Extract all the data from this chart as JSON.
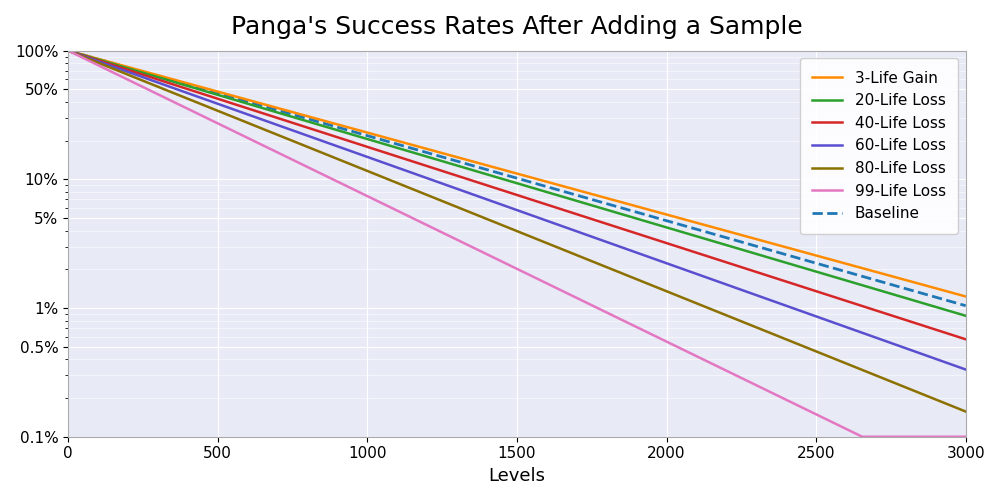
{
  "title": "Panga's Success Rates After Adding a Sample",
  "xlabel": "Levels",
  "ylabel": "",
  "background_color": "#e8eaf6",
  "figure_background": "#ffffff",
  "x_min": 0,
  "x_max": 3000,
  "y_min": 0.001,
  "y_max": 1.0,
  "yticks": [
    1.0,
    0.5,
    0.1,
    0.05,
    0.01,
    0.005,
    0.001
  ],
  "ytick_labels": [
    "100%",
    "50%",
    "10%",
    "5%",
    "1%",
    "0.5%",
    "0.1%"
  ],
  "xticks": [
    0,
    500,
    1000,
    1500,
    2000,
    2500,
    3000
  ],
  "series": [
    {
      "label": "3-Life Gain",
      "color": "#ff8c00",
      "linestyle": "-",
      "linewidth": 1.8,
      "p_per_level": 0.998535
    },
    {
      "label": "20-Life Loss",
      "color": "#2ca02c",
      "linestyle": "-",
      "linewidth": 1.8,
      "p_per_level": 0.99842
    },
    {
      "label": "40-Life Loss",
      "color": "#d62728",
      "linestyle": "-",
      "linewidth": 1.8,
      "p_per_level": 0.99828
    },
    {
      "label": "60-Life Loss",
      "color": "#5a4fcf",
      "linestyle": "-",
      "linewidth": 1.8,
      "p_per_level": 0.9981
    },
    {
      "label": "80-Life Loss",
      "color": "#8c7000",
      "linestyle": "-",
      "linewidth": 1.8,
      "p_per_level": 0.99785
    },
    {
      "label": "99-Life Loss",
      "color": "#e377c2",
      "linestyle": "-",
      "linewidth": 1.8,
      "p_per_level": 0.9974
    }
  ],
  "baseline_label": "Baseline",
  "baseline_color": "#1f77b4",
  "baseline_linestyle": "--",
  "baseline_linewidth": 2.0,
  "baseline_p": 0.99848,
  "grid_color": "#ffffff",
  "legend_fontsize": 11,
  "title_fontsize": 18,
  "axis_fontsize": 13,
  "tick_fontsize": 11
}
